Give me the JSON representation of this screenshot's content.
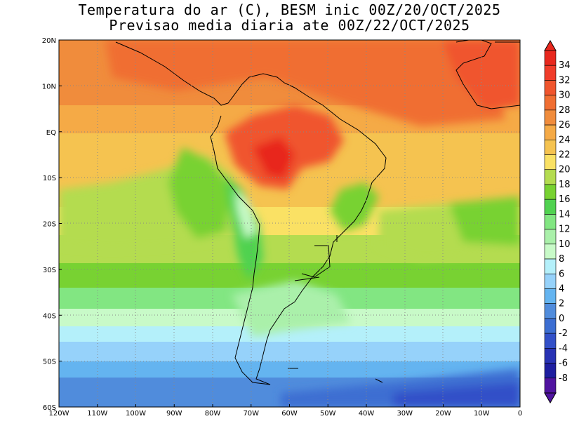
{
  "title_line1": "Temperatura do ar (C), BESM inic 00Z/20/OCT/2025",
  "title_line2": "Previsao media diaria ate 00Z/22/OCT/2025",
  "map": {
    "lon_labels": [
      "120W",
      "110W",
      "100W",
      "90W",
      "80W",
      "70W",
      "60W",
      "50W",
      "40W",
      "30W",
      "20W",
      "10W",
      "0"
    ],
    "lat_labels": [
      "20N",
      "10N",
      "EQ",
      "10S",
      "20S",
      "30S",
      "40S",
      "50S",
      "60S"
    ],
    "lon_range": [
      -120,
      0
    ],
    "lat_range": [
      -60,
      20
    ],
    "grid": "dotted"
  },
  "colorbar": {
    "labels": [
      "34",
      "32",
      "30",
      "28",
      "26",
      "24",
      "22",
      "20",
      "18",
      "16",
      "14",
      "12",
      "10",
      "8",
      "6",
      "4",
      "2",
      "0",
      "-2",
      "-4",
      "-6",
      "-8"
    ],
    "colors": [
      "#e8281e",
      "#f03c2a",
      "#f0552d",
      "#f06e32",
      "#f08c3c",
      "#f5aa46",
      "#f5c350",
      "#fae164",
      "#b4dc50",
      "#78d232",
      "#50d250",
      "#82e682",
      "#aaf0aa",
      "#c8fac8",
      "#b4f0fa",
      "#96d2fa",
      "#64b4f0",
      "#508cdc",
      "#3c6ed2",
      "#3250c8",
      "#2832b4",
      "#1e1ea0",
      "#5014a0"
    ]
  },
  "temperature_regions": [
    {
      "name": "ocean-warm-north",
      "value": 28
    },
    {
      "name": "amazon-hot",
      "value": 32
    },
    {
      "name": "atlantic-subtropical",
      "value": 22
    },
    {
      "name": "pacific-subtropical",
      "value": 20
    },
    {
      "name": "southern-ocean",
      "value": 4
    }
  ]
}
